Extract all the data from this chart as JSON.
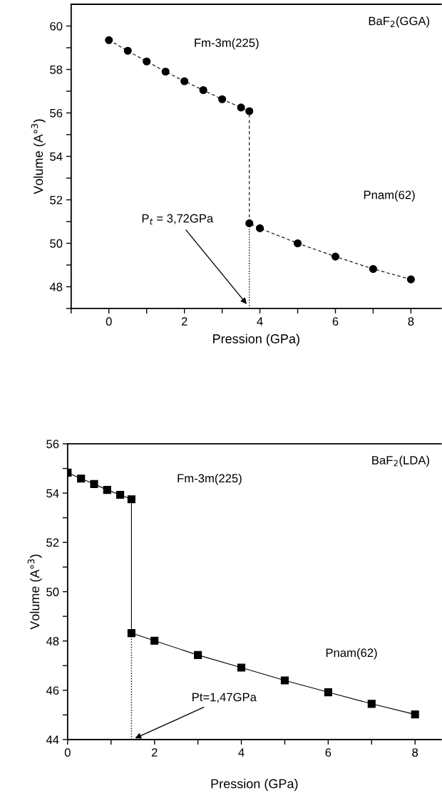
{
  "chart_data": [
    {
      "type": "line",
      "title": "BaF$_{2}$(GGA)",
      "xlabel": "Pression (GPa)",
      "ylabel": "Volume (A°$^{3}$)",
      "marker": "circle",
      "line_style": "dashed",
      "grid": false,
      "series": [
        {
          "color": "#000000",
          "x": [
            0,
            0.5,
            1,
            1.5,
            2,
            2.5,
            3,
            3.5,
            3.72,
            3.72,
            4,
            5,
            6,
            7,
            8
          ],
          "values": [
            59.35,
            58.86,
            58.37,
            57.9,
            57.46,
            57.05,
            56.63,
            56.25,
            56.08,
            50.92,
            50.69,
            50.0,
            49.39,
            48.82,
            48.34
          ]
        }
      ],
      "xlim": [
        -1,
        8.8
      ],
      "ylim": [
        47,
        61
      ],
      "xticks": [
        {
          "value": -1,
          "label": null
        },
        0,
        {
          "value": 1,
          "label": null
        },
        2,
        {
          "value": 3,
          "label": null
        },
        4,
        {
          "value": 5,
          "label": null
        },
        6,
        {
          "value": 7,
          "label": null
        },
        8
      ],
      "yticks": [
        {
          "value": 47,
          "label": null
        },
        48,
        {
          "value": 49,
          "label": null
        },
        50,
        {
          "value": 51,
          "label": null
        },
        52,
        {
          "value": 53,
          "label": null
        },
        54,
        {
          "value": 55,
          "label": null
        },
        56,
        {
          "value": 57,
          "label": null
        },
        58,
        {
          "value": 59,
          "label": null
        },
        60
      ],
      "ref_lines": [
        {
          "axis": "x",
          "value": 3.72,
          "line_style": "dotted"
        }
      ],
      "annotations": [
        "Fm-3m(225)",
        "Pnam(62)",
        {
          "text": "P$_{t}$ = 3,72GPa",
          "x": 3.65,
          "y": 47.2
        }
      ]
    },
    {
      "type": "line",
      "title": "BaF$_{2}$(LDA)",
      "xlabel": "Pression (GPa)",
      "ylabel": "Volume (A°$^{3}$)",
      "marker": "square",
      "line_style": "solid",
      "grid": false,
      "series": [
        {
          "color": "#000000",
          "x": [
            0,
            0.31,
            0.61,
            0.91,
            1.21,
            1.47,
            1.47,
            2,
            3,
            4,
            5,
            6,
            7,
            8
          ],
          "values": [
            54.83,
            54.59,
            54.37,
            54.13,
            53.93,
            53.75,
            48.32,
            48.01,
            47.43,
            46.92,
            46.4,
            45.92,
            45.45,
            45.02
          ]
        }
      ],
      "xlim": [
        0,
        8.6
      ],
      "ylim": [
        44,
        56
      ],
      "xticks": [
        0,
        {
          "value": 1,
          "label": null
        },
        2,
        {
          "value": 3,
          "label": null
        },
        4,
        {
          "value": 5,
          "label": null
        },
        6,
        {
          "value": 7,
          "label": null
        },
        8
      ],
      "yticks": [
        44,
        {
          "value": 45,
          "label": null
        },
        46,
        {
          "value": 47,
          "label": null
        },
        48,
        {
          "value": 49,
          "label": null
        },
        50,
        {
          "value": 51,
          "label": null
        },
        52,
        {
          "value": 53,
          "label": null
        },
        54,
        {
          "value": 55,
          "label": null
        },
        56
      ],
      "ref_lines": [
        {
          "axis": "x",
          "value": 1.47,
          "line_style": "dotted"
        }
      ],
      "annotations": [
        "Fm-3m(225)",
        "Pnam(62)",
        {
          "text": "Pt=1,47GPa",
          "x": 1.55,
          "y": 44.05
        }
      ]
    }
  ]
}
